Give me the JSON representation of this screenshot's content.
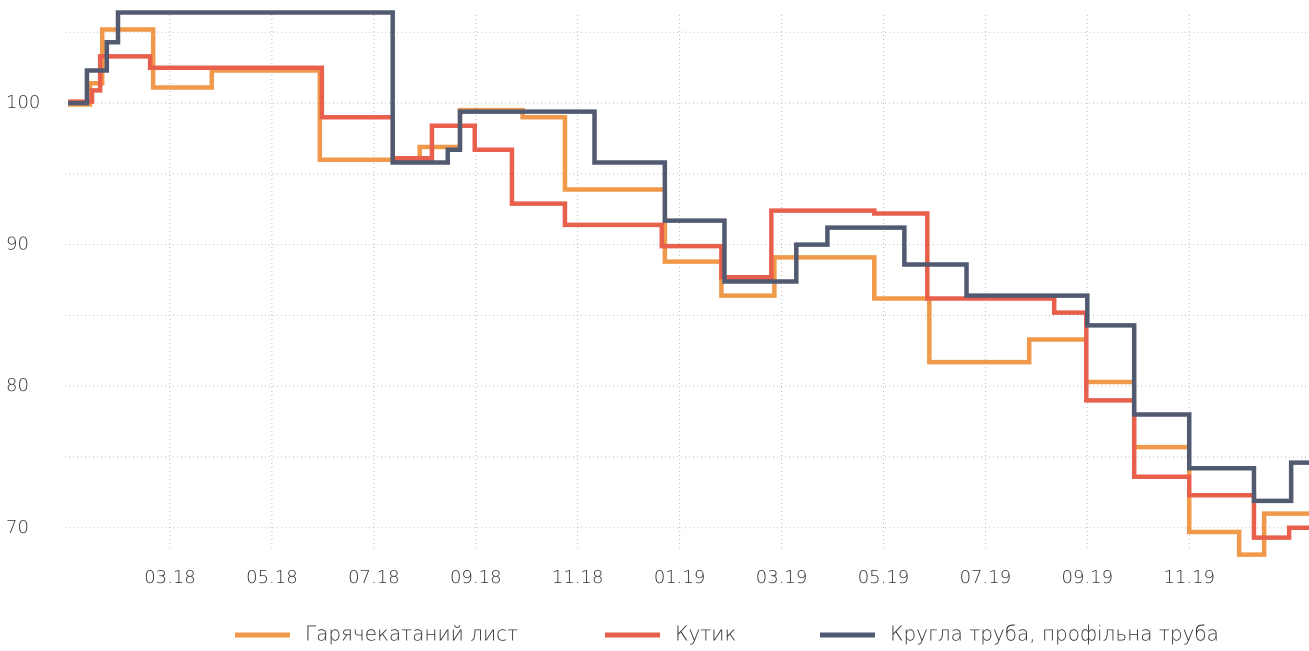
{
  "chart_data": {
    "type": "step",
    "xlim": [
      -0.06,
      24.35
    ],
    "ylim": [
      68.5,
      107
    ],
    "xticks": [
      {
        "value": 2,
        "label": "03.18"
      },
      {
        "value": 4,
        "label": "05.18"
      },
      {
        "value": 6,
        "label": "07.18"
      },
      {
        "value": 8,
        "label": "09.18"
      },
      {
        "value": 10,
        "label": "11.18"
      },
      {
        "value": 12,
        "label": "01.19"
      },
      {
        "value": 14,
        "label": "03.19"
      },
      {
        "value": 16,
        "label": "05.19"
      },
      {
        "value": 18,
        "label": "07.19"
      },
      {
        "value": 20,
        "label": "09.19"
      },
      {
        "value": 22,
        "label": "11.19"
      }
    ],
    "yticks": [
      70,
      80,
      90,
      100
    ],
    "minor_yticks": [
      75,
      85,
      95,
      105
    ],
    "grid": true,
    "legend": "bottom",
    "series": [
      {
        "name": "Гарячекатаний лист",
        "color": "#f0994a",
        "x": [
          0,
          0.43,
          0.67,
          1.67,
          2.82,
          4.94,
          6.9,
          7.69,
          8.92,
          9.75,
          11.71,
          12.82,
          13.86,
          15.82,
          16.9,
          18.86,
          19.98,
          20.92,
          22.0,
          22.98,
          23.47
        ],
        "values": [
          99.9,
          101.4,
          105.2,
          101.1,
          102.3,
          96.0,
          96.9,
          99.5,
          99.0,
          93.9,
          88.8,
          86.4,
          89.1,
          86.2,
          81.7,
          83.3,
          80.3,
          75.7,
          69.7,
          68.1,
          71.0
        ]
      },
      {
        "name": "Кутик",
        "color": "#e8604c",
        "x": [
          0,
          0.47,
          0.63,
          1.61,
          4.98,
          6.37,
          7.14,
          7.98,
          8.71,
          9.75,
          11.65,
          12.82,
          13.8,
          15.82,
          16.86,
          19.35,
          19.98,
          20.92,
          22.0,
          23.27,
          23.96
        ],
        "values": [
          100.1,
          100.9,
          103.3,
          102.5,
          99.0,
          96.1,
          98.4,
          96.7,
          92.9,
          91.4,
          89.9,
          87.7,
          92.4,
          92.2,
          86.2,
          85.2,
          79.0,
          73.6,
          72.3,
          69.3,
          70.0
        ]
      },
      {
        "name": "Кругла труба, профільна труба",
        "color": "#525a72",
        "x": [
          0,
          0.37,
          0.76,
          0.98,
          6.37,
          7.45,
          7.69,
          10.33,
          11.71,
          12.88,
          14.29,
          14.9,
          16.41,
          17.63,
          20.0,
          20.92,
          22.0,
          23.27,
          24.0
        ],
        "values": [
          100.0,
          102.3,
          104.3,
          106.4,
          95.8,
          96.7,
          99.4,
          95.8,
          91.7,
          87.4,
          90.0,
          91.2,
          88.6,
          86.4,
          84.3,
          78.0,
          74.2,
          71.9,
          74.6
        ]
      }
    ]
  }
}
